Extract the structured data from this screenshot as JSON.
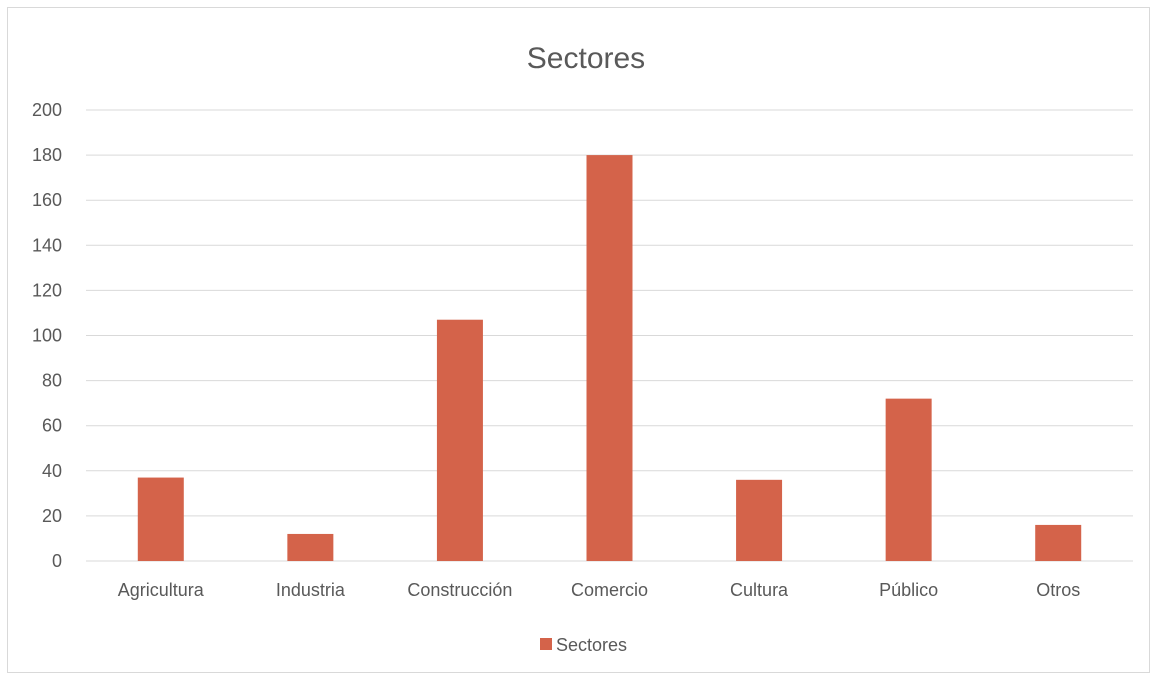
{
  "chart_data": {
    "type": "bar",
    "title": "Sectores",
    "categories": [
      "Agricultura",
      "Industria",
      "Construcción",
      "Comercio",
      "Cultura",
      "Público",
      "Otros"
    ],
    "series": [
      {
        "name": "Sectores",
        "values": [
          37,
          12,
          107,
          180,
          36,
          72,
          16
        ],
        "color": "#d4634a"
      }
    ],
    "ylim": [
      0,
      200
    ],
    "yticks": [
      0,
      20,
      40,
      60,
      80,
      100,
      120,
      140,
      160,
      180,
      200
    ],
    "grid": true,
    "legend_position": "bottom",
    "gridline_color": "#d9d9d9",
    "text_color": "#595959"
  }
}
